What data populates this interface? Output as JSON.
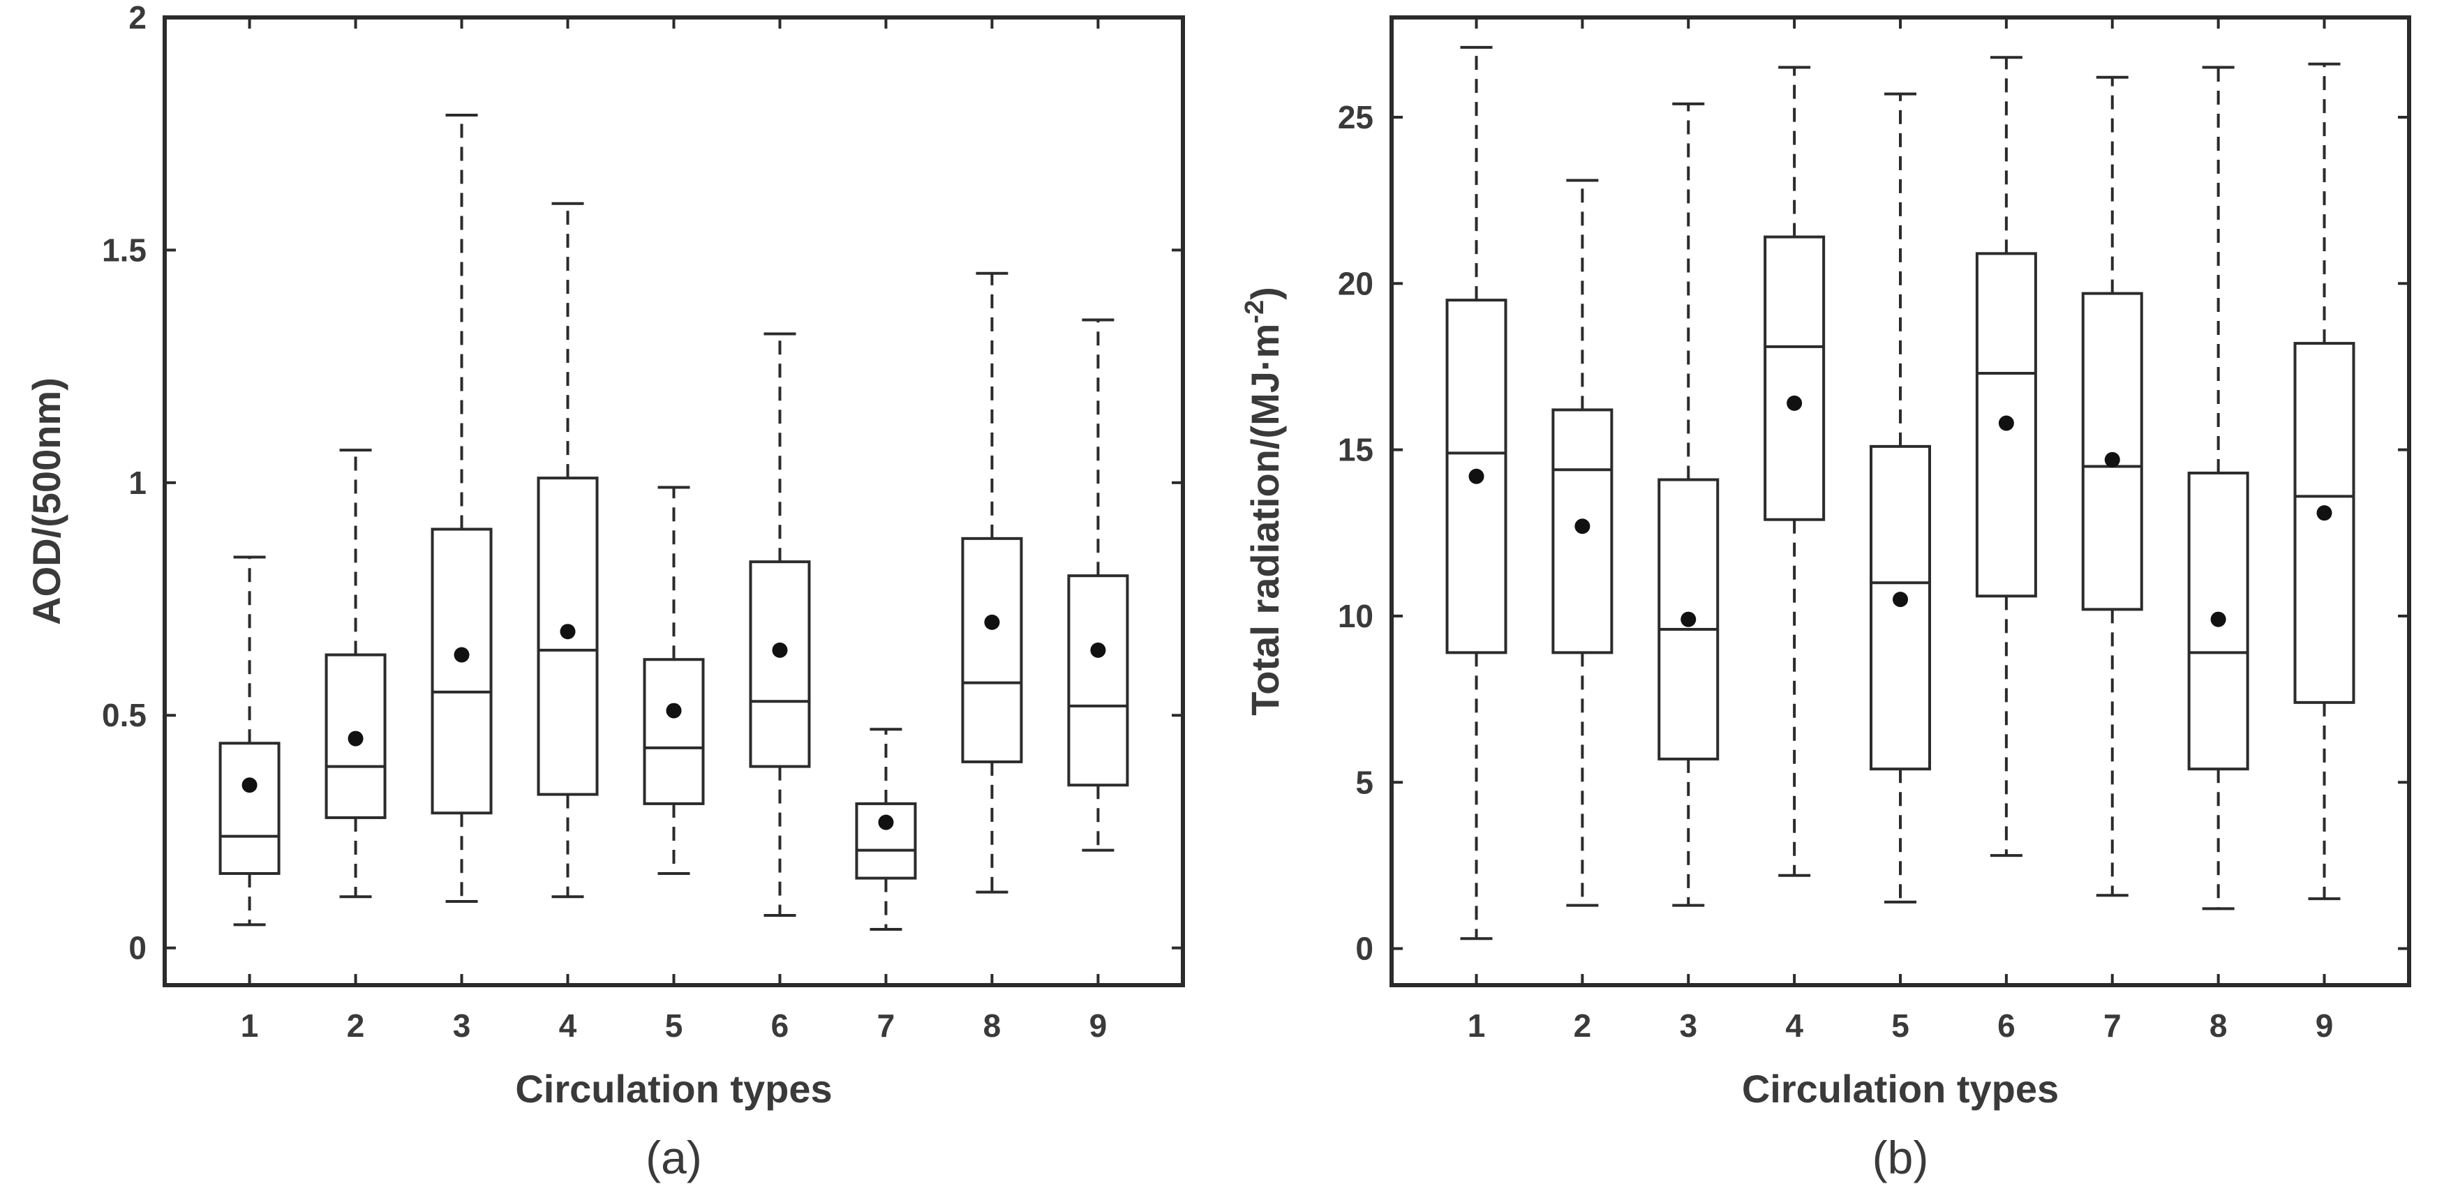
{
  "chart_data": [
    {
      "type": "box",
      "panel_label": "(a)",
      "xlabel": "Circulation types",
      "ylabel": "AOD/(500nm)",
      "categories": [
        "1",
        "2",
        "3",
        "4",
        "5",
        "6",
        "7",
        "8",
        "9"
      ],
      "ylim": [
        -0.08,
        2.0
      ],
      "yticks": [
        0,
        0.5,
        1,
        1.5,
        2
      ],
      "ytick_labels": [
        "0",
        "0.5",
        "1",
        "1.5",
        "2"
      ],
      "series": [
        {
          "category": "1",
          "whisker_low": 0.05,
          "q1": 0.16,
          "median": 0.24,
          "q3": 0.44,
          "whisker_high": 0.84,
          "mean": 0.35
        },
        {
          "category": "2",
          "whisker_low": 0.11,
          "q1": 0.28,
          "median": 0.39,
          "q3": 0.63,
          "whisker_high": 1.07,
          "mean": 0.45
        },
        {
          "category": "3",
          "whisker_low": 0.1,
          "q1": 0.29,
          "median": 0.55,
          "q3": 0.9,
          "whisker_high": 1.79,
          "mean": 0.63
        },
        {
          "category": "4",
          "whisker_low": 0.11,
          "q1": 0.33,
          "median": 0.64,
          "q3": 1.01,
          "whisker_high": 1.6,
          "mean": 0.68
        },
        {
          "category": "5",
          "whisker_low": 0.16,
          "q1": 0.31,
          "median": 0.43,
          "q3": 0.62,
          "whisker_high": 0.99,
          "mean": 0.51
        },
        {
          "category": "6",
          "whisker_low": 0.07,
          "q1": 0.39,
          "median": 0.53,
          "q3": 0.83,
          "whisker_high": 1.32,
          "mean": 0.64
        },
        {
          "category": "7",
          "whisker_low": 0.04,
          "q1": 0.15,
          "median": 0.21,
          "q3": 0.31,
          "whisker_high": 0.47,
          "mean": 0.27
        },
        {
          "category": "8",
          "whisker_low": 0.12,
          "q1": 0.4,
          "median": 0.57,
          "q3": 0.88,
          "whisker_high": 1.45,
          "mean": 0.7
        },
        {
          "category": "9",
          "whisker_low": 0.21,
          "q1": 0.35,
          "median": 0.52,
          "q3": 0.8,
          "whisker_high": 1.35,
          "mean": 0.64
        }
      ]
    },
    {
      "type": "box",
      "panel_label": "(b)",
      "xlabel": "Circulation types",
      "ylabel": "Total radiation/(MJ·m",
      "ylabel_superscript": "-2",
      "ylabel_suffix": ")",
      "categories": [
        "1",
        "2",
        "3",
        "4",
        "5",
        "6",
        "7",
        "8",
        "9"
      ],
      "ylim": [
        -1.1,
        28.0
      ],
      "yticks": [
        0,
        5,
        10,
        15,
        20,
        25
      ],
      "ytick_labels": [
        "0",
        "5",
        "10",
        "15",
        "20",
        "25"
      ],
      "series": [
        {
          "category": "1",
          "whisker_low": 0.3,
          "q1": 8.9,
          "median": 14.9,
          "q3": 19.5,
          "whisker_high": 27.1,
          "mean": 14.2
        },
        {
          "category": "2",
          "whisker_low": 1.3,
          "q1": 8.9,
          "median": 14.4,
          "q3": 16.2,
          "whisker_high": 23.1,
          "mean": 12.7
        },
        {
          "category": "3",
          "whisker_low": 1.3,
          "q1": 5.7,
          "median": 9.6,
          "q3": 14.1,
          "whisker_high": 25.4,
          "mean": 9.9
        },
        {
          "category": "4",
          "whisker_low": 2.2,
          "q1": 12.9,
          "median": 18.1,
          "q3": 21.4,
          "whisker_high": 26.5,
          "mean": 16.4
        },
        {
          "category": "5",
          "whisker_low": 1.4,
          "q1": 5.4,
          "median": 11.0,
          "q3": 15.1,
          "whisker_high": 25.7,
          "mean": 10.5
        },
        {
          "category": "6",
          "whisker_low": 2.8,
          "q1": 10.6,
          "median": 17.3,
          "q3": 20.9,
          "whisker_high": 26.8,
          "mean": 15.8
        },
        {
          "category": "7",
          "whisker_low": 1.6,
          "q1": 10.2,
          "median": 14.5,
          "q3": 19.7,
          "whisker_high": 26.2,
          "mean": 14.7
        },
        {
          "category": "8",
          "whisker_low": 1.2,
          "q1": 5.4,
          "median": 8.9,
          "q3": 14.3,
          "whisker_high": 26.5,
          "mean": 9.9
        },
        {
          "category": "9",
          "whisker_low": 1.5,
          "q1": 7.4,
          "median": 13.6,
          "q3": 18.2,
          "whisker_high": 26.6,
          "mean": 13.1
        }
      ]
    }
  ]
}
